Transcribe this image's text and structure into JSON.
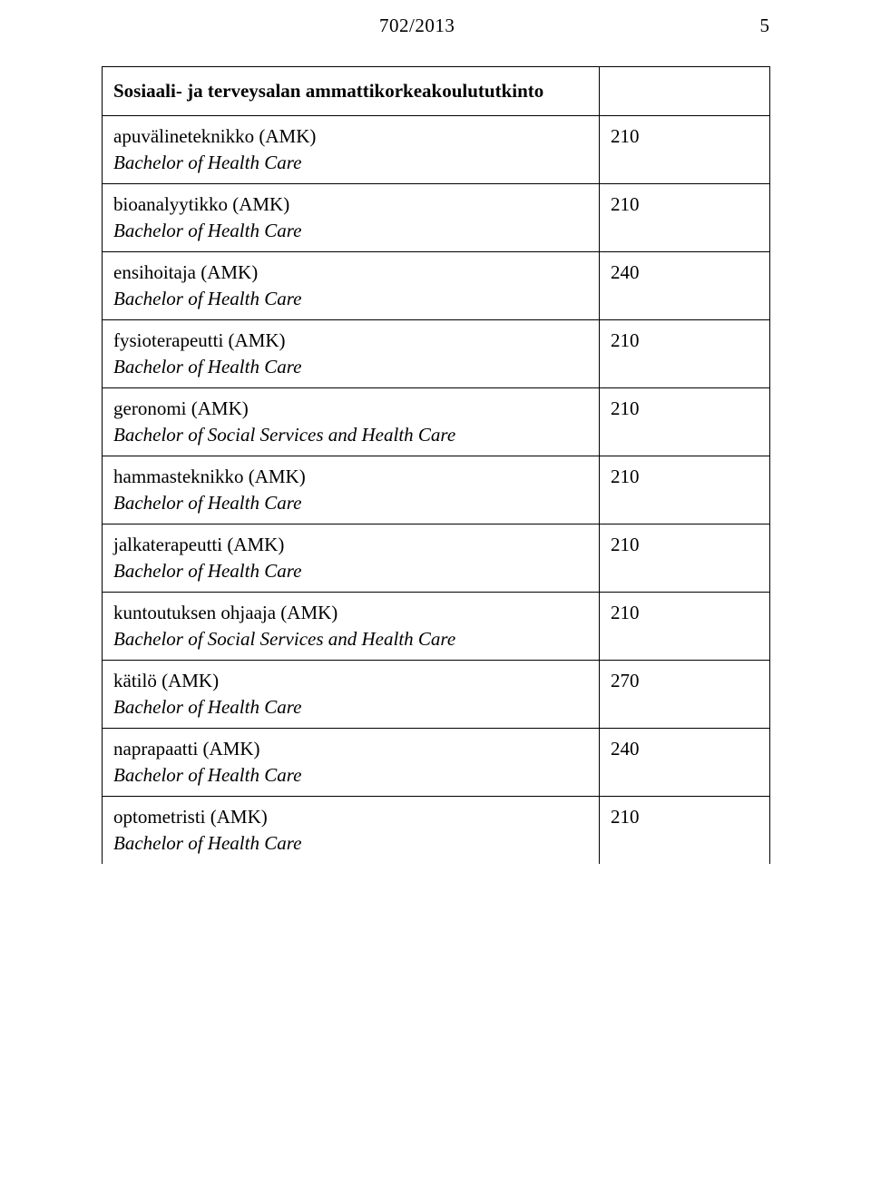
{
  "header": {
    "doc_number": "702/2013",
    "page_number": "5"
  },
  "table": {
    "section_title": "Sosiaali- ja terveysalan ammattikorkeakoulututkinto",
    "rows": [
      {
        "line1": "apuvälineteknikko (AMK)",
        "line2": "Bachelor of Health Care",
        "value": "210"
      },
      {
        "line1": "bioanalyytikko (AMK)",
        "line2": "Bachelor of Health Care",
        "value": "210"
      },
      {
        "line1": "ensihoitaja (AMK)",
        "line2": "Bachelor of Health Care",
        "value": "240"
      },
      {
        "line1": "fysioterapeutti (AMK)",
        "line2": "Bachelor of Health Care",
        "value": "210"
      },
      {
        "line1": "geronomi (AMK)",
        "line2": "Bachelor of Social Services and Health Care",
        "value": "210"
      },
      {
        "line1": "hammasteknikko (AMK)",
        "line2": "Bachelor of Health Care",
        "value": "210"
      },
      {
        "line1": "jalkaterapeutti (AMK)",
        "line2": "Bachelor of Health Care",
        "value": "210"
      },
      {
        "line1": "kuntoutuksen ohjaaja (AMK)",
        "line2": "Bachelor of Social Services and Health Care",
        "value": "210"
      },
      {
        "line1": "kätilö (AMK)",
        "line2": "Bachelor of Health Care",
        "value": "270"
      },
      {
        "line1": "naprapaatti (AMK)",
        "line2": "Bachelor of Health Care",
        "value": "240"
      },
      {
        "line1": "optometristi (AMK)",
        "line2": "Bachelor of Health Care",
        "value": "210"
      }
    ]
  },
  "colors": {
    "background": "#ffffff",
    "text": "#000000",
    "border": "#000000"
  },
  "fonts": {
    "family": "Times New Roman",
    "body_size_pt": 16,
    "italic_line2": true,
    "bold_title": true
  }
}
